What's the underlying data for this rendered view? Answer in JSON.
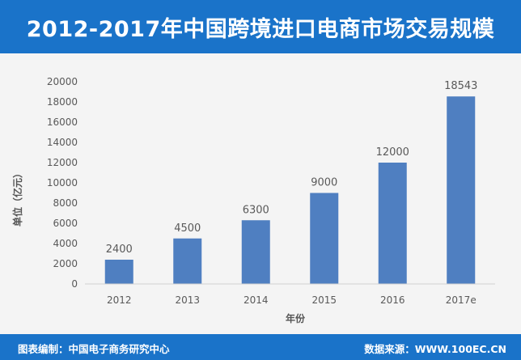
{
  "header": {
    "title": "2012-2017年中国跨境进口电商市场交易规模"
  },
  "footer": {
    "left_text": "图表编制：中国电子商务研究中心",
    "right_text": "数据来源：WWW.100EC.CN"
  },
  "colors": {
    "header_bg": "#1a73c9",
    "bar": "#4f7fc1",
    "plot_bg": "#f4f4f4"
  },
  "chart_data": {
    "type": "bar",
    "title": "2012-2017年中国跨境进口电商市场交易规模",
    "categories": [
      "2012",
      "2013",
      "2014",
      "2015",
      "2016",
      "2017e"
    ],
    "values": [
      2400,
      4500,
      6300,
      9000,
      12000,
      18543
    ],
    "data_labels": [
      "2400",
      "4500",
      "6300",
      "9000",
      "12000",
      "18543"
    ],
    "xlabel": "年份",
    "ylabel": "单位（亿元）",
    "ylim": [
      0,
      20000
    ],
    "yticks": [
      0,
      2000,
      4000,
      6000,
      8000,
      10000,
      12000,
      14000,
      16000,
      18000,
      20000
    ],
    "ytick_labels": [
      "0",
      "2000",
      "4000",
      "6000",
      "8000",
      "10000",
      "12000",
      "14000",
      "16000",
      "18000",
      "20000"
    ],
    "grid": false,
    "legend": "none"
  }
}
